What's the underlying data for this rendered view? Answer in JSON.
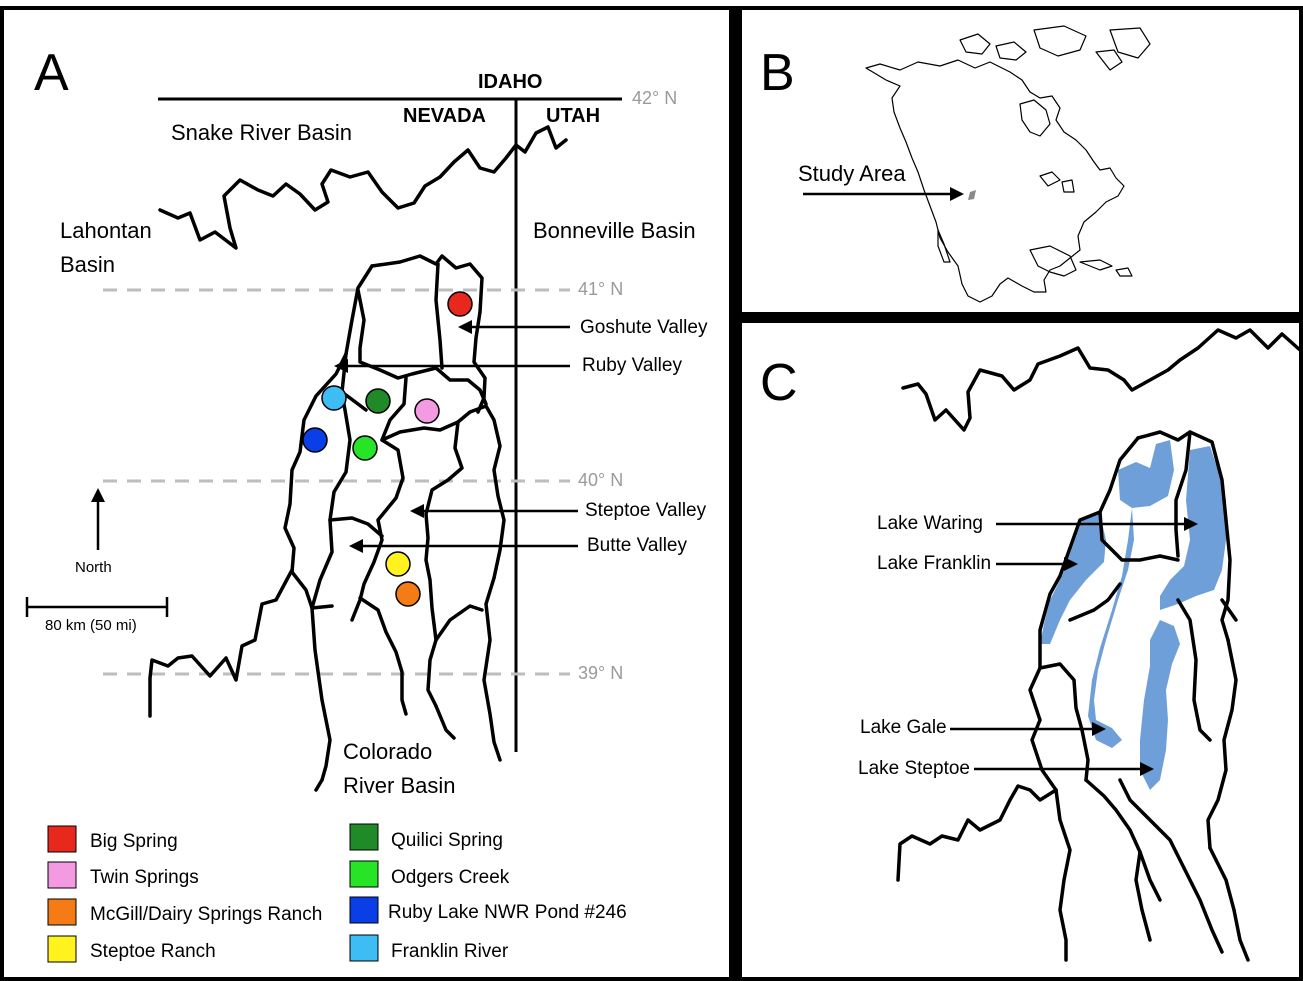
{
  "panels": {
    "a": {
      "letter": "A",
      "states": {
        "idaho": "IDAHO",
        "nevada": "NEVADA",
        "utah": "UTAH"
      },
      "basins": {
        "snake": "Snake River Basin",
        "lahontan_1": "Lahontan",
        "lahontan_2": "Basin",
        "bonneville": "Bonneville Basin",
        "colorado_1": "Colorado",
        "colorado_2": "River Basin"
      },
      "latitudes": {
        "lat42": "42° N",
        "lat41": "41° N",
        "lat40": "40° N",
        "lat39": "39° N"
      },
      "valleys": {
        "goshute": "Goshute Valley",
        "ruby": "Ruby Valley",
        "steptoe": "Steptoe Valley",
        "butte": "Butte Valley"
      },
      "north_label": "North",
      "scale_label": "80 km (50 mi)",
      "sites": [
        {
          "name": "Big Spring",
          "color": "#e8281c"
        },
        {
          "name": "Twin Springs",
          "color": "#f39ae3"
        },
        {
          "name": "McGill/Dairy Springs Ranch",
          "color": "#f57c14"
        },
        {
          "name": "Steptoe Ranch",
          "color": "#fff21e"
        },
        {
          "name": "Quilici Spring",
          "color": "#1f8a27"
        },
        {
          "name": "Odgers Creek",
          "color": "#27e427"
        },
        {
          "name": "Ruby Lake NWR Pond #246",
          "color": "#0a3ee6"
        },
        {
          "name": "Franklin River",
          "color": "#3dbdf4"
        }
      ]
    },
    "b": {
      "letter": "B",
      "study_area_label": "Study Area"
    },
    "c": {
      "letter": "C",
      "lake_color": "#6f9fd8",
      "lakes": {
        "waring": "Lake Waring",
        "franklin": "Lake Franklin",
        "gale": "Lake Gale",
        "steptoe": "Lake Steptoe"
      }
    }
  }
}
